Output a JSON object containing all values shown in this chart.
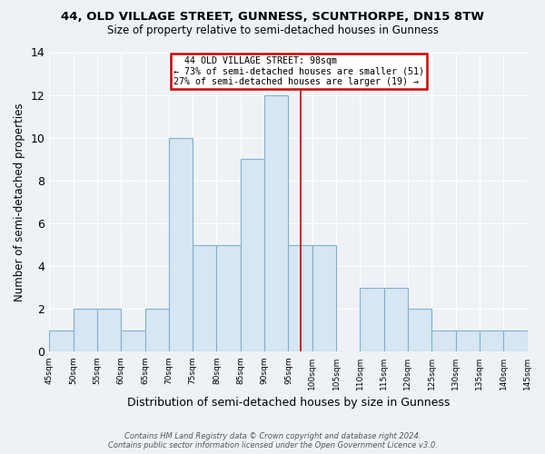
{
  "title": "44, OLD VILLAGE STREET, GUNNESS, SCUNTHORPE, DN15 8TW",
  "subtitle": "Size of property relative to semi-detached houses in Gunness",
  "xlabel": "Distribution of semi-detached houses by size in Gunness",
  "ylabel": "Number of semi-detached properties",
  "bin_edges": [
    45,
    50,
    55,
    60,
    65,
    70,
    75,
    80,
    85,
    90,
    95,
    100,
    105,
    110,
    115,
    120,
    125,
    130,
    135,
    140,
    145
  ],
  "counts": [
    1,
    2,
    2,
    1,
    2,
    10,
    5,
    5,
    9,
    12,
    5,
    5,
    0,
    3,
    3,
    2,
    1,
    1,
    1,
    1
  ],
  "bar_color": "#d6e6f2",
  "bar_edge_color": "#7fb0d0",
  "highlight_line_x": 97.5,
  "annotation_title": "44 OLD VILLAGE STREET: 98sqm",
  "annotation_line1": "← 73% of semi-detached houses are smaller (51)",
  "annotation_line2": "27% of semi-detached houses are larger (19) →",
  "annotation_box_facecolor": "#ffffff",
  "annotation_box_edgecolor": "#cc0000",
  "footer_line1": "Contains HM Land Registry data © Crown copyright and database right 2024.",
  "footer_line2": "Contains public sector information licensed under the Open Government Licence v3.0.",
  "ylim": [
    0,
    14
  ],
  "xlim_left": 45,
  "xlim_right": 145,
  "yticks": [
    0,
    2,
    4,
    6,
    8,
    10,
    12,
    14
  ],
  "background_color": "#eef2f7",
  "grid_color": "#ffffff",
  "tick_labels": [
    "45sqm",
    "50sqm",
    "55sqm",
    "60sqm",
    "65sqm",
    "70sqm",
    "75sqm",
    "80sqm",
    "85sqm",
    "90sqm",
    "95sqm",
    "100sqm",
    "105sqm",
    "110sqm",
    "115sqm",
    "120sqm",
    "125sqm",
    "130sqm",
    "135sqm",
    "140sqm",
    "145sqm"
  ]
}
